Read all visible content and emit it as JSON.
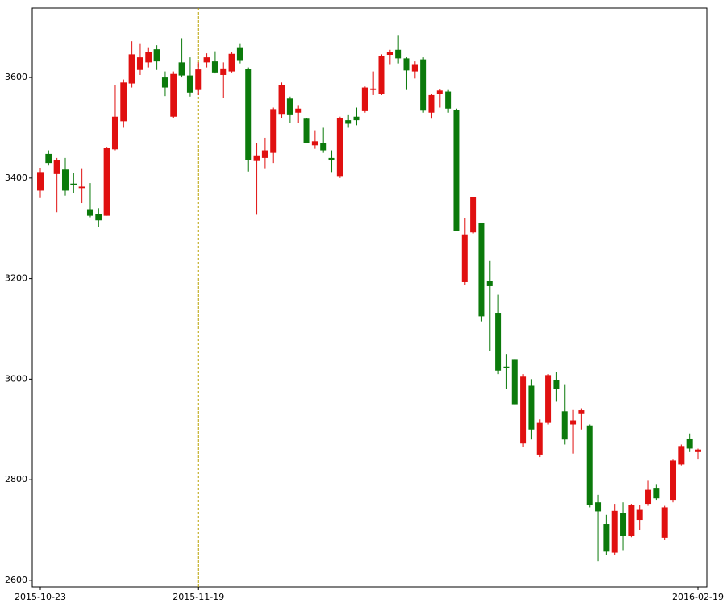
{
  "chart_data": {
    "type": "candlestick",
    "x": [
      "2015-10-23",
      "2015-10-26",
      "2015-10-27",
      "2015-10-28",
      "2015-10-29",
      "2015-10-30",
      "2015-11-02",
      "2015-11-03",
      "2015-11-04",
      "2015-11-05",
      "2015-11-06",
      "2015-11-09",
      "2015-11-10",
      "2015-11-11",
      "2015-11-12",
      "2015-11-13",
      "2015-11-16",
      "2015-11-17",
      "2015-11-18",
      "2015-11-19",
      "2015-11-20",
      "2015-11-23",
      "2015-11-24",
      "2015-11-25",
      "2015-11-26",
      "2015-11-27",
      "2015-11-30",
      "2015-12-01",
      "2015-12-02",
      "2015-12-03",
      "2015-12-04",
      "2015-12-07",
      "2015-12-08",
      "2015-12-09",
      "2015-12-10",
      "2015-12-11",
      "2015-12-14",
      "2015-12-15",
      "2015-12-16",
      "2015-12-17",
      "2015-12-18",
      "2015-12-21",
      "2015-12-22",
      "2015-12-23",
      "2015-12-24",
      "2015-12-25",
      "2015-12-28",
      "2015-12-29",
      "2015-12-30",
      "2015-12-31",
      "2016-01-04",
      "2016-01-05",
      "2016-01-06",
      "2016-01-07",
      "2016-01-08",
      "2016-01-11",
      "2016-01-12",
      "2016-01-13",
      "2016-01-14",
      "2016-01-15",
      "2016-01-18",
      "2016-01-19",
      "2016-01-20",
      "2016-01-21",
      "2016-01-22",
      "2016-01-25",
      "2016-01-26",
      "2016-01-27",
      "2016-01-28",
      "2016-01-29",
      "2016-02-01",
      "2016-02-02",
      "2016-02-03",
      "2016-02-04",
      "2016-02-05",
      "2016-02-15",
      "2016-02-16",
      "2016-02-17",
      "2016-02-18",
      "2016-02-19"
    ],
    "open": [
      3375,
      3448,
      3408,
      3417,
      3389,
      3380,
      3338,
      3329,
      3325,
      3457,
      3513,
      3588,
      3615,
      3630,
      3656,
      3600,
      3522,
      3630,
      3604,
      3575,
      3630,
      3632,
      3605,
      3612,
      3660,
      3617,
      3434,
      3440,
      3450,
      3526,
      3558,
      3530,
      3518,
      3465,
      3470,
      3440,
      3404,
      3515,
      3522,
      3533,
      3575,
      3568,
      3645,
      3655,
      3638,
      3612,
      3636,
      3530,
      3568,
      3572,
      3536,
      3193,
      3292,
      3310,
      3195,
      3132,
      3025,
      3040,
      2872,
      2987,
      2850,
      2913,
      2998,
      2936,
      2910,
      2932,
      2908,
      2755,
      2712,
      2655,
      2733,
      2688,
      2720,
      2752,
      2784,
      2685,
      2760,
      2830,
      2882,
      2855
    ],
    "high": [
      3420,
      3455,
      3440,
      3440,
      3410,
      3418,
      3390,
      3340,
      3462,
      3585,
      3596,
      3672,
      3668,
      3660,
      3664,
      3612,
      3612,
      3678,
      3640,
      3630,
      3648,
      3652,
      3630,
      3650,
      3668,
      3620,
      3470,
      3480,
      3540,
      3590,
      3562,
      3545,
      3520,
      3495,
      3500,
      3455,
      3522,
      3525,
      3540,
      3582,
      3612,
      3646,
      3655,
      3683,
      3640,
      3632,
      3640,
      3568,
      3576,
      3575,
      3538,
      3320,
      3362,
      3310,
      3235,
      3168,
      3050,
      3040,
      3010,
      3000,
      2920,
      3010,
      3015,
      2990,
      2940,
      2942,
      2910,
      2770,
      2730,
      2752,
      2755,
      2752,
      2750,
      2798,
      2790,
      2748,
      2840,
      2870,
      2892,
      2862
    ],
    "low": [
      3360,
      3425,
      3332,
      3365,
      3370,
      3350,
      3322,
      3302,
      3325,
      3455,
      3500,
      3580,
      3605,
      3620,
      3615,
      3563,
      3520,
      3600,
      3562,
      3565,
      3620,
      3608,
      3560,
      3610,
      3628,
      3413,
      3327,
      3418,
      3430,
      3520,
      3510,
      3510,
      3470,
      3458,
      3450,
      3412,
      3400,
      3500,
      3505,
      3530,
      3565,
      3565,
      3625,
      3628,
      3575,
      3598,
      3530,
      3518,
      3540,
      3530,
      3295,
      3188,
      3290,
      3115,
      3056,
      3010,
      2980,
      2950,
      2865,
      2880,
      2845,
      2910,
      2955,
      2870,
      2852,
      2900,
      2745,
      2638,
      2650,
      2650,
      2660,
      2686,
      2700,
      2748,
      2760,
      2680,
      2755,
      2828,
      2855,
      2840
    ],
    "close": [
      3412,
      3430,
      3435,
      3375,
      3387,
      3383,
      3325,
      3316,
      3460,
      3522,
      3590,
      3646,
      3640,
      3650,
      3632,
      3580,
      3607,
      3604,
      3570,
      3616,
      3640,
      3610,
      3618,
      3647,
      3633,
      3436,
      3445,
      3455,
      3537,
      3585,
      3525,
      3538,
      3470,
      3473,
      3455,
      3435,
      3520,
      3508,
      3515,
      3580,
      3578,
      3643,
      3650,
      3638,
      3614,
      3625,
      3534,
      3565,
      3574,
      3538,
      3295,
      3288,
      3362,
      3125,
      3185,
      3017,
      3022,
      2950,
      3005,
      2900,
      2913,
      3008,
      2980,
      2880,
      2918,
      2938,
      2750,
      2737,
      2657,
      2738,
      2688,
      2750,
      2740,
      2780,
      2763,
      2745,
      2838,
      2867,
      2862,
      2860
    ],
    "up_color": "#e01010",
    "down_color": "#0b7a0b",
    "ylim": [
      2587,
      3738
    ],
    "yticks": [
      2600,
      2800,
      3000,
      3200,
      3400,
      3600
    ],
    "xticks": [
      "2015-10-23",
      "2015-11-19",
      "2016-02-19"
    ],
    "vline": {
      "x": "2015-11-19",
      "color": "#b8a000"
    }
  }
}
